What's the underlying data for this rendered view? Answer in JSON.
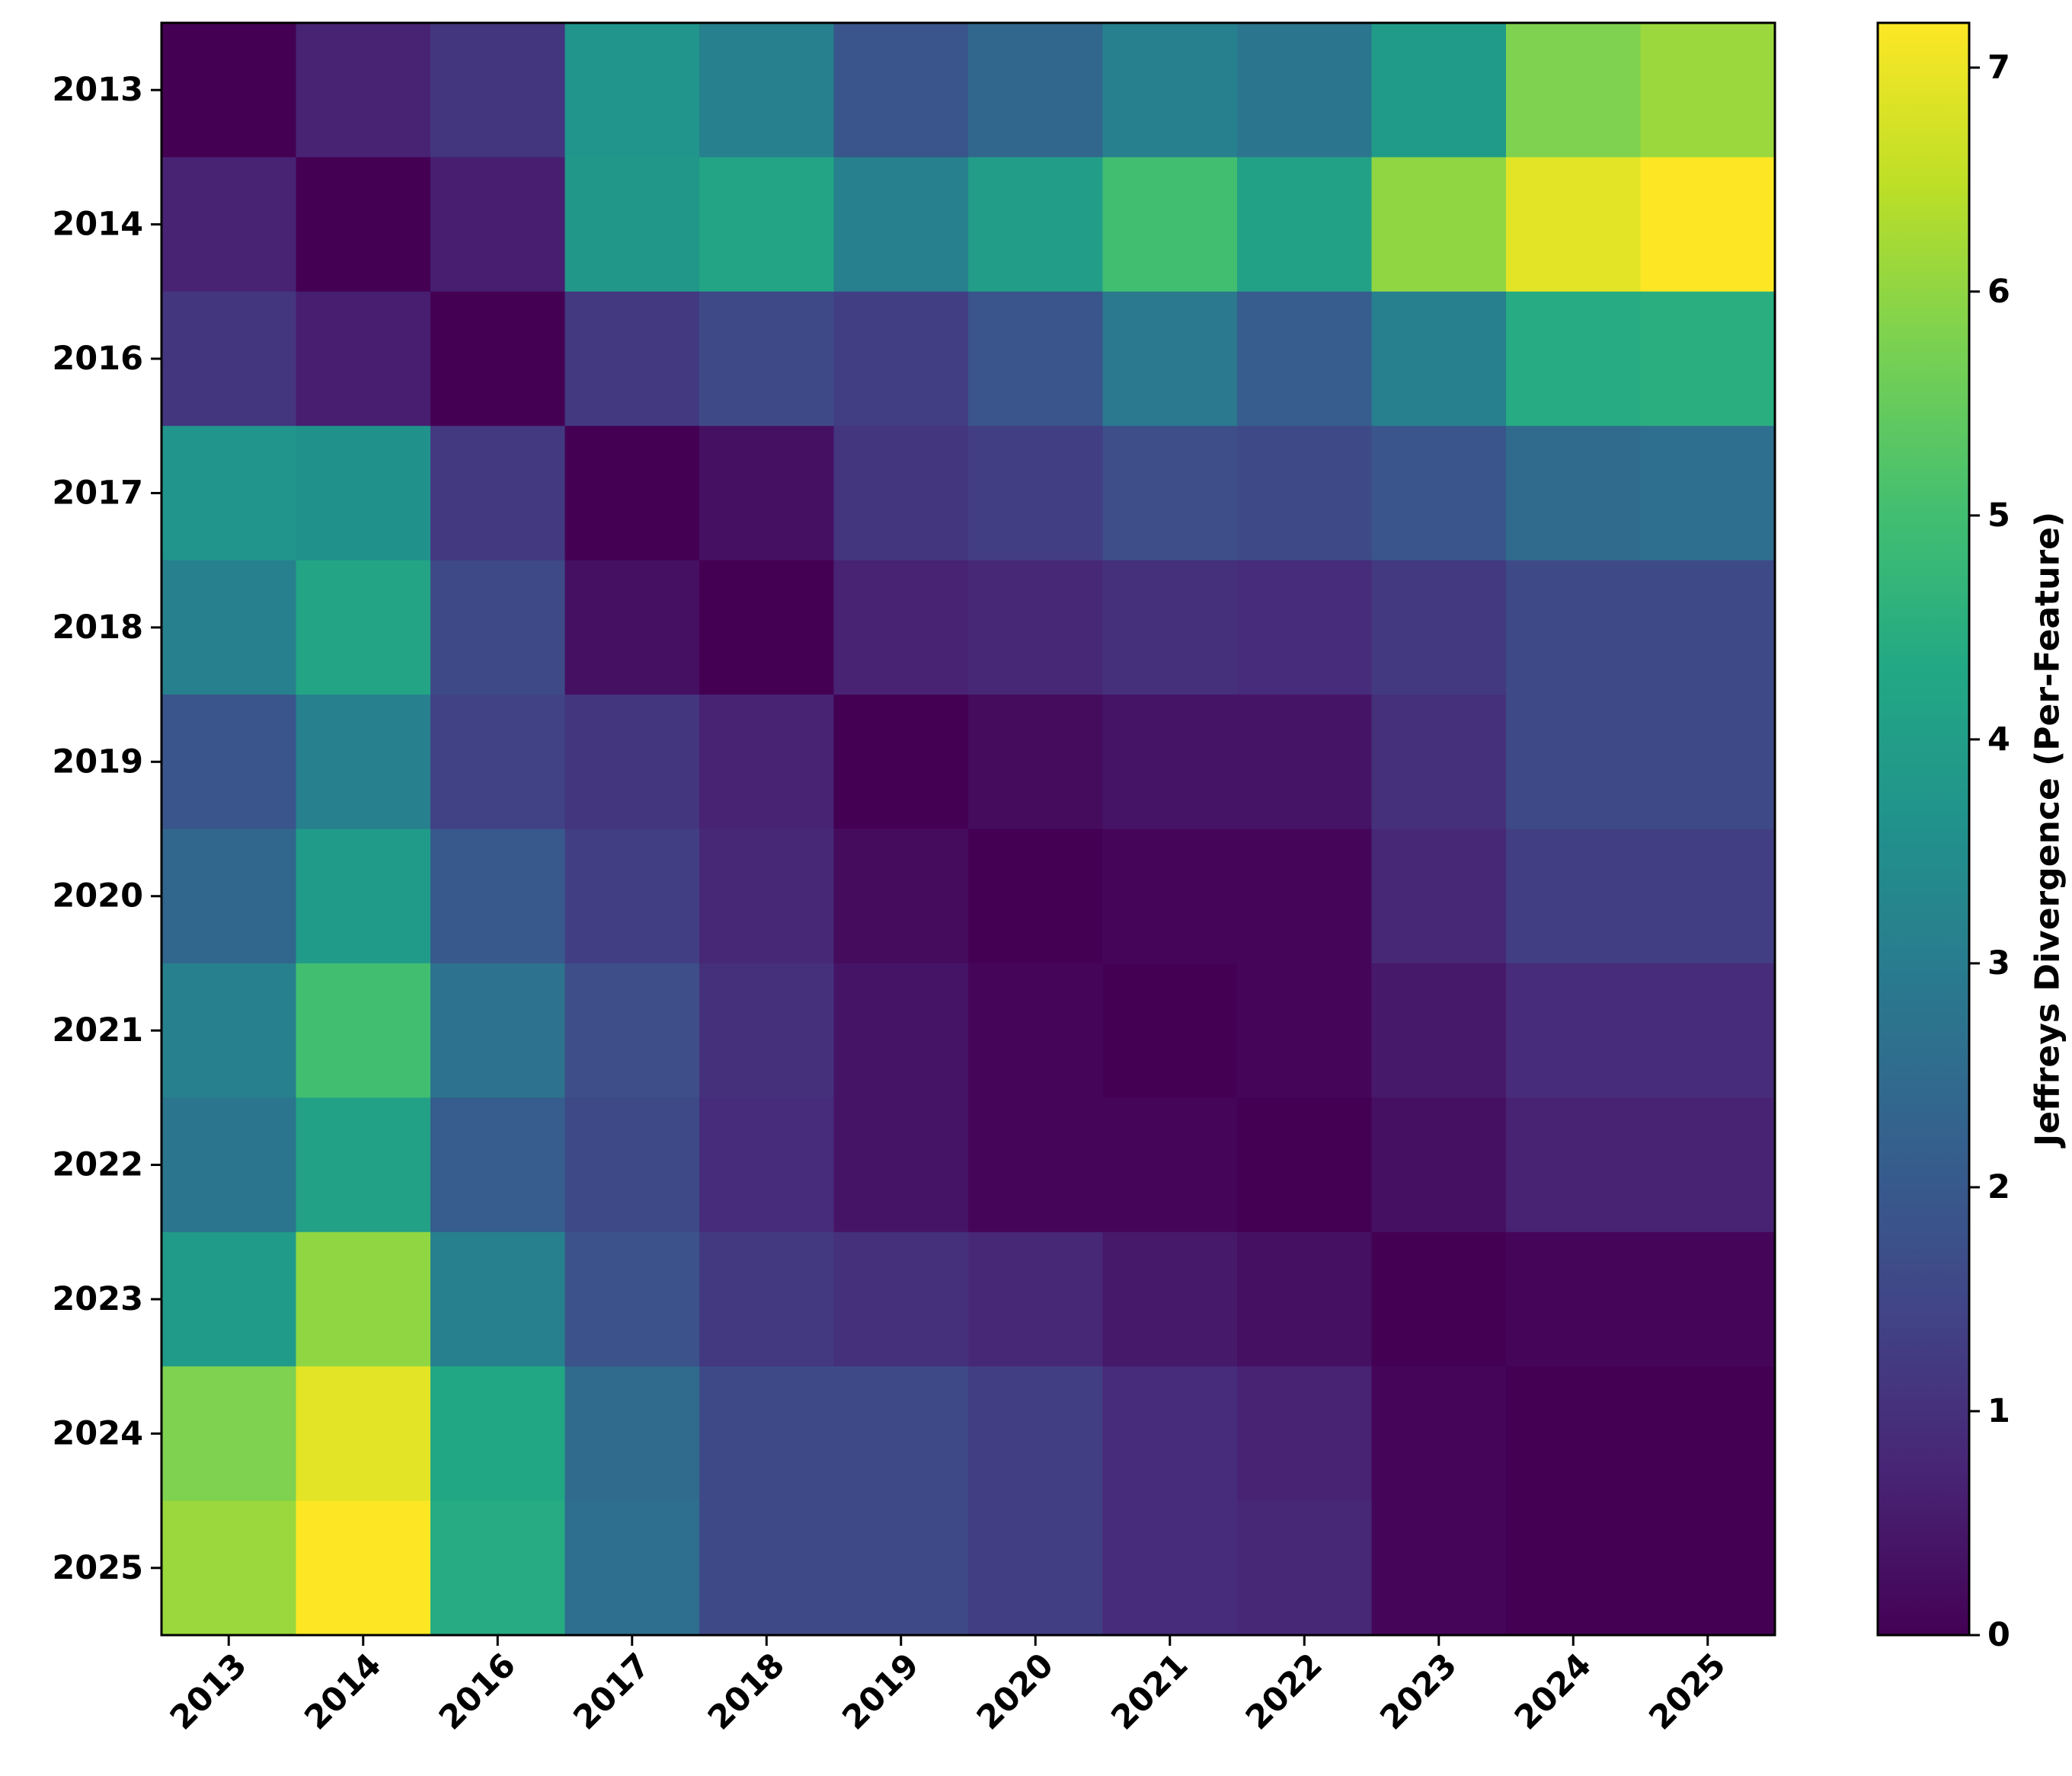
{
  "chart_data": {
    "type": "heatmap",
    "title": "",
    "xlabel": "",
    "ylabel": "",
    "x_categories": [
      "2013",
      "2014",
      "2016",
      "2017",
      "2018",
      "2019",
      "2020",
      "2021",
      "2022",
      "2023",
      "2024",
      "2025"
    ],
    "y_categories": [
      "2013",
      "2014",
      "2016",
      "2017",
      "2018",
      "2019",
      "2020",
      "2021",
      "2022",
      "2023",
      "2024",
      "2025"
    ],
    "values": [
      [
        0.0,
        0.7,
        1.1,
        3.7,
        3.1,
        1.9,
        2.4,
        3.1,
        2.8,
        3.9,
        5.8,
        6.1
      ],
      [
        0.7,
        0.0,
        0.6,
        3.8,
        4.2,
        3.1,
        4.0,
        5.0,
        4.1,
        6.0,
        6.9,
        7.2
      ],
      [
        1.1,
        0.6,
        0.0,
        1.2,
        1.6,
        1.3,
        1.9,
        2.9,
        2.1,
        3.1,
        4.4,
        4.5
      ],
      [
        3.7,
        3.6,
        1.2,
        0.0,
        0.3,
        1.1,
        1.3,
        1.7,
        1.6,
        1.9,
        2.5,
        2.6
      ],
      [
        3.1,
        4.2,
        1.6,
        0.3,
        0.0,
        0.7,
        0.8,
        1.0,
        0.9,
        1.2,
        1.6,
        1.6
      ],
      [
        1.9,
        3.1,
        1.4,
        1.1,
        0.7,
        0.0,
        0.2,
        0.4,
        0.4,
        1.0,
        1.6,
        1.6
      ],
      [
        2.4,
        3.9,
        2.0,
        1.3,
        0.8,
        0.2,
        0.0,
        0.1,
        0.1,
        0.8,
        1.3,
        1.3
      ],
      [
        3.1,
        5.0,
        2.7,
        1.7,
        1.0,
        0.4,
        0.1,
        0.0,
        0.1,
        0.5,
        0.9,
        0.9
      ],
      [
        2.8,
        4.1,
        2.1,
        1.6,
        0.9,
        0.4,
        0.1,
        0.1,
        0.0,
        0.3,
        0.7,
        0.7
      ],
      [
        3.9,
        6.0,
        3.1,
        1.8,
        1.2,
        1.0,
        0.8,
        0.5,
        0.3,
        0.0,
        0.1,
        0.1
      ],
      [
        5.8,
        6.9,
        4.3,
        2.5,
        1.6,
        1.6,
        1.3,
        0.9,
        0.7,
        0.1,
        0.0,
        0.0
      ],
      [
        6.1,
        7.2,
        4.4,
        2.6,
        1.6,
        1.6,
        1.3,
        0.9,
        0.8,
        0.1,
        0.0,
        0.0
      ]
    ],
    "colormap": "viridis",
    "vmin": 0,
    "vmax": 7.2,
    "colorbar": {
      "label": "Jeffreys Divergence (Per-Feature)",
      "ticks": [
        0,
        1,
        2,
        3,
        4,
        5,
        6,
        7
      ],
      "tick_labels": [
        "0",
        "1",
        "2",
        "3",
        "4",
        "5",
        "6",
        "7"
      ]
    },
    "grid": false,
    "x_tick_rotation": 45
  }
}
